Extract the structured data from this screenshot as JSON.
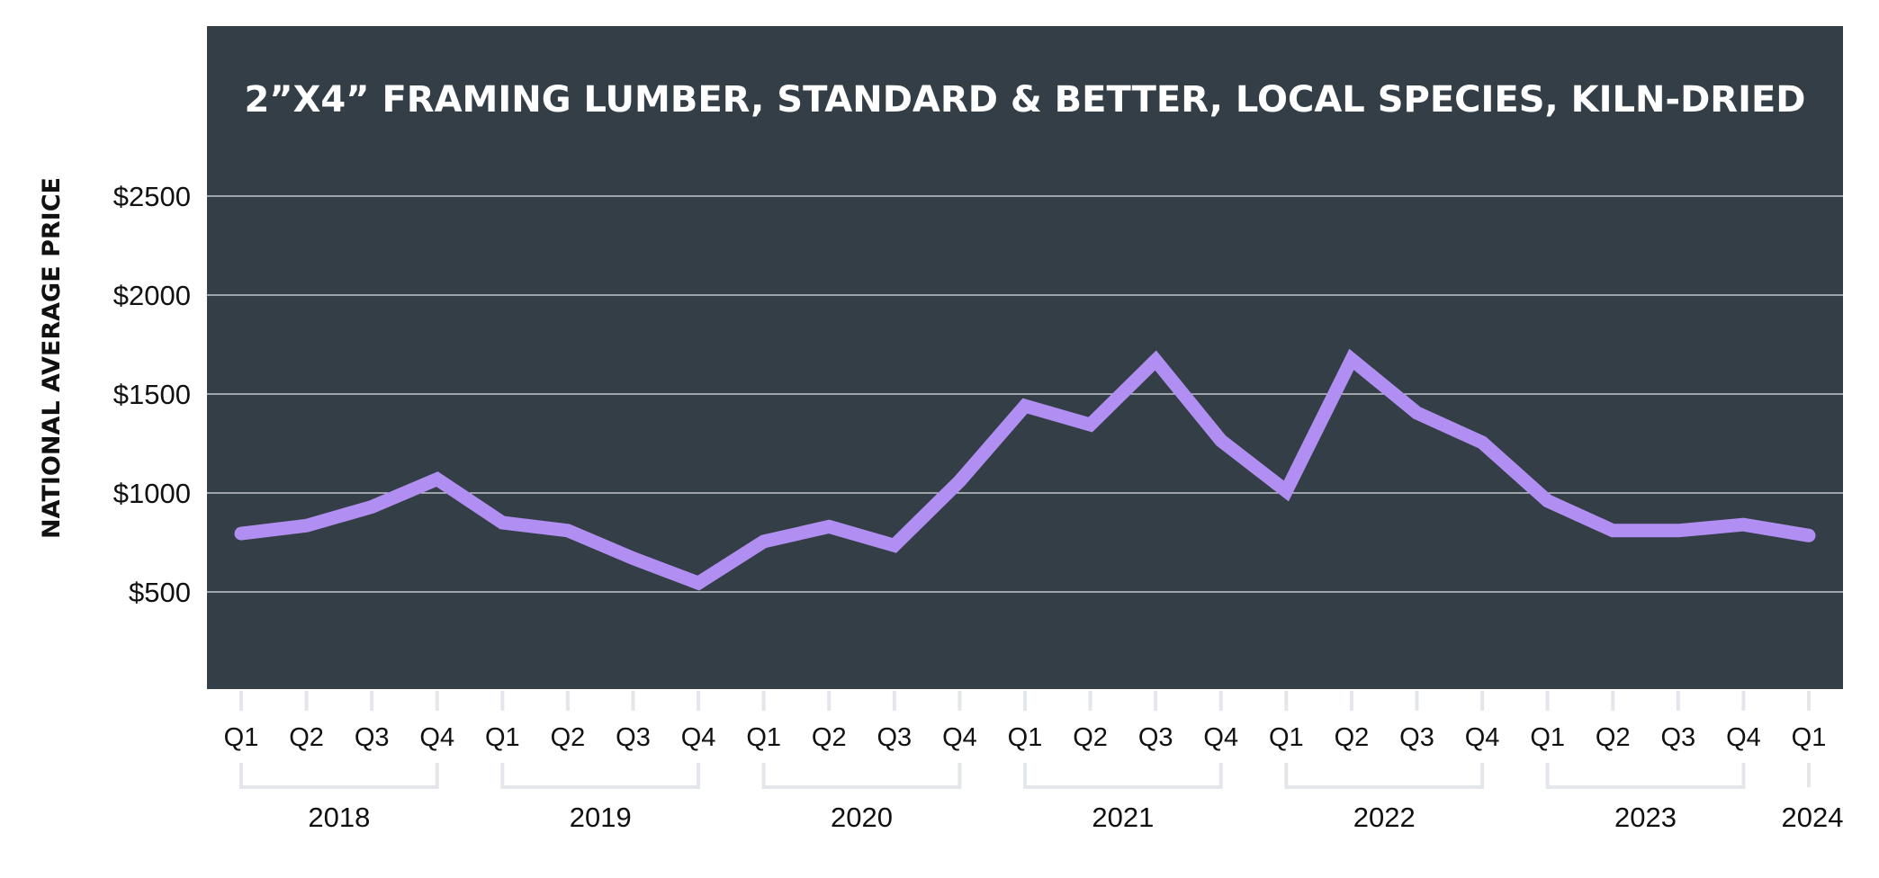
{
  "chart_data": {
    "type": "line",
    "title": "2”X4” FRAMING LUMBER, STANDARD & BETTER, LOCAL SPECIES, KILN-DRIED",
    "ylabel": "NATIONAL AVERAGE PRICE",
    "xlabel": "",
    "ylim": [
      0,
      3000
    ],
    "yticks": [
      500,
      1000,
      1500,
      2000,
      2500
    ],
    "ytick_labels": [
      "$500",
      "$1000",
      "$1500",
      "$2000",
      "$2500"
    ],
    "grid": true,
    "categories": [
      "Q1",
      "Q2",
      "Q3",
      "Q4",
      "Q1",
      "Q2",
      "Q3",
      "Q4",
      "Q1",
      "Q2",
      "Q3",
      "Q4",
      "Q1",
      "Q2",
      "Q3",
      "Q4",
      "Q1",
      "Q2",
      "Q3",
      "Q4",
      "Q1",
      "Q2",
      "Q3",
      "Q4",
      "Q1"
    ],
    "years": [
      {
        "label": "2018",
        "quarters": 4
      },
      {
        "label": "2019",
        "quarters": 4
      },
      {
        "label": "2020",
        "quarters": 4
      },
      {
        "label": "2021",
        "quarters": 4
      },
      {
        "label": "2022",
        "quarters": 4
      },
      {
        "label": "2023",
        "quarters": 4
      },
      {
        "label": "2024",
        "quarters": 1
      }
    ],
    "series": [
      {
        "values": [
          795,
          835,
          930,
          1070,
          850,
          810,
          670,
          545,
          755,
          830,
          735,
          1060,
          1440,
          1345,
          1670,
          1265,
          1010,
          1675,
          1405,
          1255,
          960,
          810,
          810,
          840,
          785
        ]
      }
    ],
    "colors": {
      "plot_background": "#343e47",
      "line": "#b18ff2",
      "grid": "#dfe2e6",
      "bracket": "#e3e6ea"
    }
  }
}
